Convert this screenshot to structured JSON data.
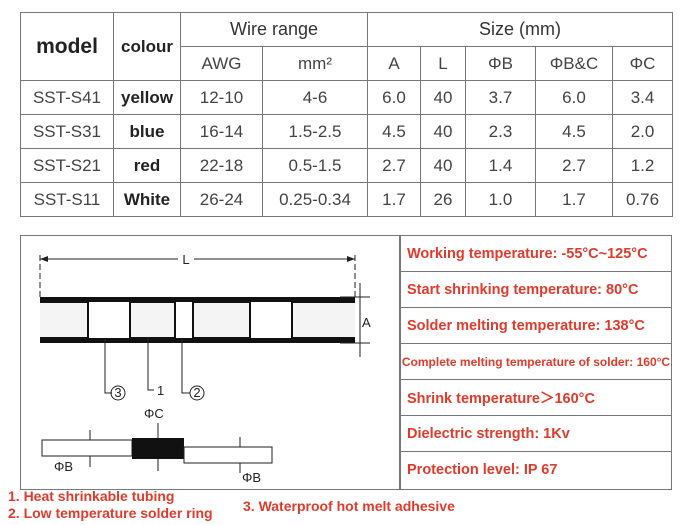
{
  "table": {
    "headers": {
      "model": "model",
      "colour": "colour",
      "wire_range": "Wire range",
      "size": "Size (mm)",
      "sub": [
        "AWG",
        "mm²",
        "A",
        "L",
        "ΦB",
        "ΦB&C",
        "ΦC"
      ]
    },
    "rows": [
      [
        "SST-S41",
        "yellow",
        "12-10",
        "4-6",
        "6.0",
        "40",
        "3.7",
        "6.0",
        "3.4"
      ],
      [
        "SST-S31",
        "blue",
        "16-14",
        "1.5-2.5",
        "4.5",
        "40",
        "2.3",
        "4.5",
        "2.0"
      ],
      [
        "SST-S21",
        "red",
        "22-18",
        "0.5-1.5",
        "2.7",
        "40",
        "1.4",
        "2.7",
        "1.2"
      ],
      [
        "SST-S11",
        "White",
        "26-24",
        "0.25-0.34",
        "1.7",
        "26",
        "1.0",
        "1.7",
        "0.76"
      ]
    ]
  },
  "diagram": {
    "labels": {
      "length": "L",
      "diameter": "A",
      "part3": "3",
      "part1": "1",
      "part2": "2",
      "phi_c": "ΦC",
      "phi_b_left": "ΦB",
      "phi_b_right": "ΦB"
    }
  },
  "properties": [
    "Working temperature: -55°C~125°C",
    "Start shrinking temperature: 80°C",
    "Solder melting temperature: 138°C",
    "Complete melting temperature of solder: 160°C",
    "Shrink temperature＞160°C",
    "Dielectric strength: 1Kv",
    "Protection level: IP 67"
  ],
  "legend": [
    "1. Heat shrinkable tubing",
    "2. Low temperature solder ring",
    "3. Waterproof hot melt adhesive"
  ]
}
